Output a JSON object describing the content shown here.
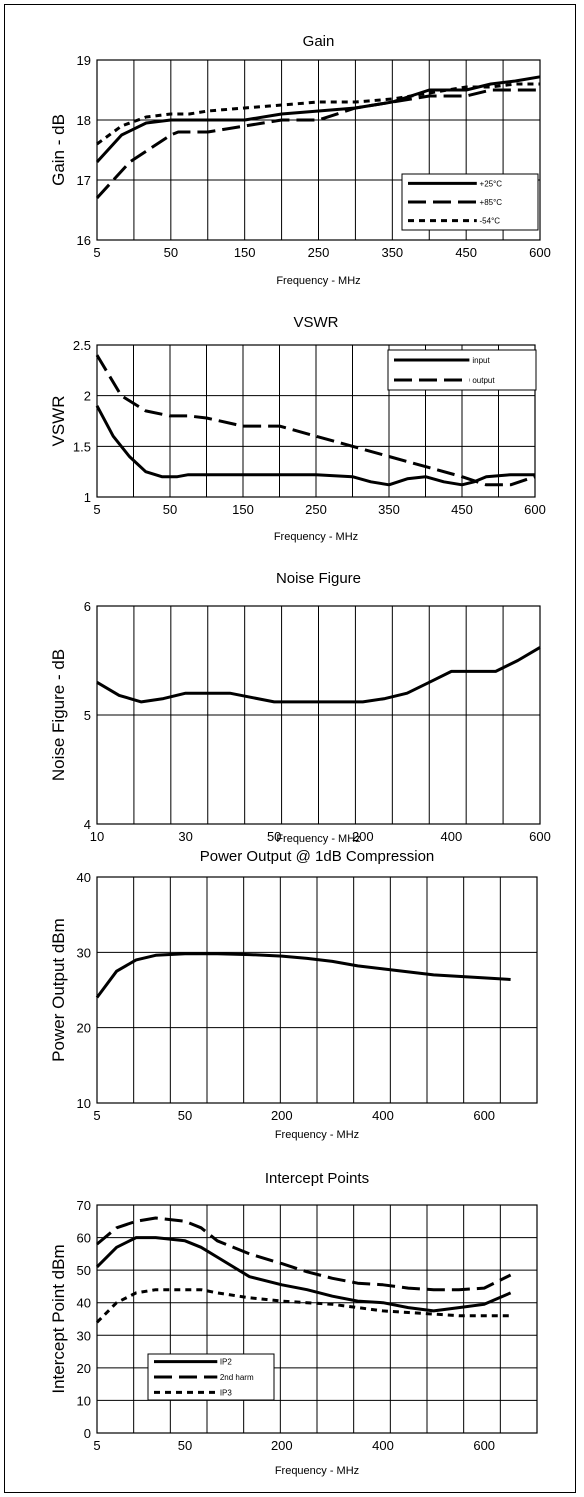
{
  "chart_data": [
    {
      "id": "gain",
      "type": "line",
      "title": "Gain",
      "xlabel": "Frequency - MHz",
      "ylabel": "Gain - dB",
      "x_ticks": [
        "5",
        "50",
        "150",
        "250",
        "350",
        "450",
        "600"
      ],
      "x_scale": "categorical-ticks",
      "ylim": [
        16,
        19
      ],
      "y_ticks": [
        "16",
        "17",
        "18",
        "19"
      ],
      "grid": true,
      "legend_position": "bottom-right",
      "series": [
        {
          "name": "+25°C",
          "style": "solid",
          "x": [
            5,
            20,
            35,
            50,
            75,
            100,
            150,
            200,
            250,
            300,
            350,
            400,
            450,
            500,
            550,
            600
          ],
          "y": [
            17.3,
            17.75,
            17.95,
            18.0,
            18.0,
            18.0,
            18.0,
            18.1,
            18.15,
            18.2,
            18.3,
            18.5,
            18.5,
            18.6,
            18.65,
            18.72
          ]
        },
        {
          "name": "+85°C",
          "style": "long-dash",
          "x": [
            5,
            25,
            50,
            60,
            75,
            100,
            150,
            200,
            250,
            300,
            350,
            400,
            450,
            500,
            550,
            600
          ],
          "y": [
            16.7,
            17.3,
            17.75,
            17.8,
            17.8,
            17.8,
            17.9,
            18.0,
            18.0,
            18.2,
            18.3,
            18.4,
            18.4,
            18.5,
            18.5,
            18.5
          ]
        },
        {
          "name": "-54°C",
          "style": "short-dash",
          "x": [
            5,
            20,
            35,
            50,
            75,
            100,
            150,
            200,
            250,
            300,
            350,
            400,
            450,
            500,
            550,
            600
          ],
          "y": [
            17.6,
            17.9,
            18.05,
            18.1,
            18.1,
            18.15,
            18.2,
            18.25,
            18.3,
            18.3,
            18.35,
            18.45,
            18.55,
            18.55,
            18.6,
            18.6
          ]
        }
      ]
    },
    {
      "id": "vswr",
      "type": "line",
      "title": "VSWR",
      "xlabel": "Frequency - MHz",
      "ylabel": "VSWR",
      "x_ticks": [
        "5",
        "50",
        "150",
        "250",
        "350",
        "450",
        "600"
      ],
      "x_scale": "categorical-ticks",
      "ylim": [
        1,
        2.5
      ],
      "y_ticks": [
        "1",
        "1.5",
        "2",
        "2.5"
      ],
      "grid": true,
      "legend_position": "top-right",
      "series": [
        {
          "name": "input",
          "style": "solid",
          "x": [
            5,
            15,
            25,
            35,
            45,
            50,
            60,
            75,
            100,
            150,
            200,
            250,
            300,
            325,
            350,
            375,
            400,
            425,
            450,
            475,
            500,
            550,
            600
          ],
          "y": [
            1.9,
            1.6,
            1.4,
            1.25,
            1.2,
            1.2,
            1.2,
            1.22,
            1.22,
            1.22,
            1.22,
            1.22,
            1.2,
            1.15,
            1.12,
            1.18,
            1.2,
            1.15,
            1.12,
            1.15,
            1.2,
            1.22,
            1.22
          ]
        },
        {
          "name": "output",
          "style": "long-dash",
          "x": [
            5,
            20,
            35,
            50,
            75,
            100,
            150,
            200,
            250,
            300,
            350,
            400,
            450,
            500,
            550,
            600
          ],
          "y": [
            2.4,
            2.0,
            1.85,
            1.8,
            1.8,
            1.78,
            1.7,
            1.7,
            1.6,
            1.5,
            1.4,
            1.3,
            1.2,
            1.12,
            1.12,
            1.2
          ]
        }
      ]
    },
    {
      "id": "noise-figure",
      "type": "line",
      "title": "Noise Figure",
      "xlabel": "Frequency - MHz",
      "ylabel": "Noise Figure - dB",
      "x_ticks": [
        "10",
        "30",
        "50",
        "200",
        "400",
        "600"
      ],
      "x_scale": "categorical-ticks",
      "ylim": [
        4,
        6
      ],
      "y_ticks": [
        "4",
        "5",
        "6"
      ],
      "grid": true,
      "series": [
        {
          "name": "",
          "style": "solid",
          "x": [
            10,
            15,
            20,
            25,
            30,
            40,
            50,
            100,
            200,
            250,
            300,
            350,
            400,
            500,
            550,
            600
          ],
          "y": [
            5.3,
            5.18,
            5.12,
            5.15,
            5.2,
            5.2,
            5.12,
            5.12,
            5.12,
            5.15,
            5.2,
            5.3,
            5.4,
            5.4,
            5.5,
            5.62
          ]
        }
      ]
    },
    {
      "id": "power-output",
      "type": "line",
      "title": "Power Output @ 1dB Compression",
      "xlabel": "Frequency - MHz",
      "ylabel": "Power Output dBm",
      "x_ticks": [
        "5",
        "50",
        "200",
        "400",
        "600"
      ],
      "x_scale": "categorical-ticks",
      "ylim": [
        10,
        40
      ],
      "y_ticks": [
        "10",
        "20",
        "30",
        "40"
      ],
      "grid": true,
      "series": [
        {
          "name": "",
          "style": "solid",
          "x": [
            5,
            15,
            25,
            35,
            50,
            75,
            100,
            150,
            200,
            250,
            300,
            350,
            400,
            450,
            500,
            550,
            600,
            650
          ],
          "y": [
            24.0,
            27.5,
            29.0,
            29.6,
            29.8,
            29.8,
            29.8,
            29.7,
            29.5,
            29.2,
            28.8,
            28.2,
            27.8,
            27.4,
            27.0,
            26.8,
            26.6,
            26.4
          ]
        }
      ]
    },
    {
      "id": "intercept-points",
      "type": "line",
      "title": "Intercept Points",
      "xlabel": "Frequency - MHz",
      "ylabel": "Intercept Point dBm",
      "x_ticks": [
        "5",
        "50",
        "200",
        "400",
        "600"
      ],
      "x_scale": "categorical-ticks",
      "ylim": [
        0,
        70
      ],
      "y_ticks": [
        "0",
        "10",
        "20",
        "30",
        "40",
        "50",
        "60",
        "70"
      ],
      "grid": true,
      "legend_position": "bottom-left",
      "series": [
        {
          "name": "IP2",
          "style": "solid",
          "x": [
            5,
            15,
            25,
            35,
            50,
            75,
            100,
            150,
            200,
            250,
            300,
            350,
            400,
            450,
            500,
            550,
            600,
            650
          ],
          "y": [
            51,
            57,
            60,
            60,
            59,
            57,
            54,
            48,
            45.5,
            44,
            42,
            40.5,
            40,
            38.5,
            37.5,
            38.5,
            39.5,
            43
          ]
        },
        {
          "name": "2nd harm",
          "style": "long-dash",
          "x": [
            5,
            15,
            25,
            35,
            50,
            75,
            100,
            150,
            200,
            250,
            300,
            350,
            400,
            450,
            500,
            550,
            600,
            650
          ],
          "y": [
            58,
            63,
            65,
            66,
            65,
            63,
            59,
            55,
            52,
            49.5,
            47.5,
            46,
            45.5,
            44.5,
            44,
            44,
            44.5,
            48.5
          ]
        },
        {
          "name": "IP3",
          "style": "short-dash",
          "x": [
            5,
            15,
            25,
            35,
            50,
            75,
            100,
            150,
            200,
            250,
            300,
            350,
            400,
            450,
            500,
            550,
            600,
            650
          ],
          "y": [
            34,
            40,
            43,
            44,
            44,
            44,
            43,
            41.5,
            40.5,
            40,
            39.5,
            38.5,
            37.5,
            37,
            36.5,
            36,
            36,
            36
          ]
        }
      ]
    }
  ]
}
